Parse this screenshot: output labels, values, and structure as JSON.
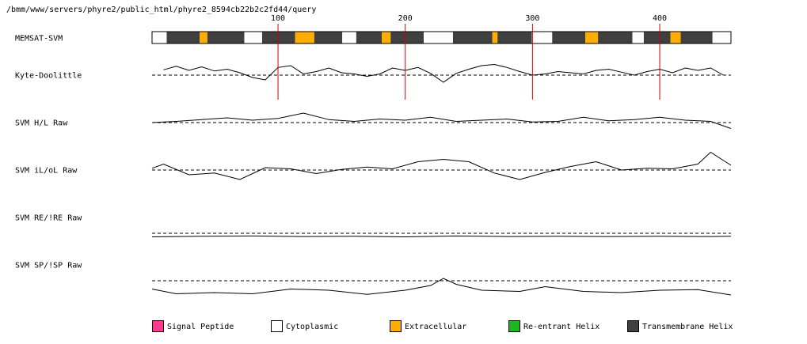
{
  "title": "/bmm/www/servers/phyre2/public_html/phyre2_8594cb22b2c2fd44/query",
  "colors": {
    "signal_peptide": "#ff3b8d",
    "cytoplasmic": "#ffffff",
    "extracellular": "#ffad00",
    "reentrant_helix": "#22b522",
    "transmembrane_helix": "#404040",
    "marker": "#d40000"
  },
  "chart_data": {
    "type": "line",
    "x_range": [
      1,
      456
    ],
    "x_ticks": [
      100,
      200,
      300,
      400
    ],
    "x_tick_labels": [
      "100",
      "200",
      "300",
      "400"
    ],
    "grid": false,
    "legend_placement": "bottom",
    "legend": [
      {
        "label": "Signal Peptide",
        "key": "signal_peptide"
      },
      {
        "label": "Cytoplasmic",
        "key": "cytoplasmic"
      },
      {
        "label": "Extracellular",
        "key": "extracellular"
      },
      {
        "label": "Re-entrant Helix",
        "key": "reentrant_helix"
      },
      {
        "label": "Transmembrane Helix",
        "key": "transmembrane_helix"
      }
    ],
    "memsat_track": {
      "label": "MEMSAT-SVM",
      "segments": [
        {
          "start": 1,
          "end": 12,
          "type": "cytoplasmic"
        },
        {
          "start": 13,
          "end": 38,
          "type": "transmembrane_helix"
        },
        {
          "start": 39,
          "end": 44,
          "type": "extracellular"
        },
        {
          "start": 45,
          "end": 73,
          "type": "transmembrane_helix"
        },
        {
          "start": 74,
          "end": 87,
          "type": "cytoplasmic"
        },
        {
          "start": 88,
          "end": 113,
          "type": "transmembrane_helix"
        },
        {
          "start": 114,
          "end": 128,
          "type": "extracellular"
        },
        {
          "start": 129,
          "end": 150,
          "type": "transmembrane_helix"
        },
        {
          "start": 151,
          "end": 161,
          "type": "cytoplasmic"
        },
        {
          "start": 162,
          "end": 181,
          "type": "transmembrane_helix"
        },
        {
          "start": 182,
          "end": 188,
          "type": "extracellular"
        },
        {
          "start": 189,
          "end": 214,
          "type": "transmembrane_helix"
        },
        {
          "start": 215,
          "end": 237,
          "type": "cytoplasmic"
        },
        {
          "start": 238,
          "end": 268,
          "type": "transmembrane_helix"
        },
        {
          "start": 269,
          "end": 272,
          "type": "extracellular"
        },
        {
          "start": 273,
          "end": 299,
          "type": "transmembrane_helix"
        },
        {
          "start": 300,
          "end": 315,
          "type": "cytoplasmic"
        },
        {
          "start": 316,
          "end": 341,
          "type": "transmembrane_helix"
        },
        {
          "start": 342,
          "end": 351,
          "type": "extracellular"
        },
        {
          "start": 352,
          "end": 378,
          "type": "transmembrane_helix"
        },
        {
          "start": 379,
          "end": 387,
          "type": "cytoplasmic"
        },
        {
          "start": 388,
          "end": 408,
          "type": "transmembrane_helix"
        },
        {
          "start": 409,
          "end": 416,
          "type": "extracellular"
        },
        {
          "start": 417,
          "end": 441,
          "type": "transmembrane_helix"
        },
        {
          "start": 442,
          "end": 456,
          "type": "cytoplasmic"
        }
      ]
    },
    "series": [
      {
        "name": "Kyte-Doolittle",
        "baseline": 0,
        "x": [
          10,
          20,
          30,
          40,
          50,
          60,
          70,
          80,
          90,
          100,
          110,
          120,
          130,
          140,
          150,
          160,
          170,
          180,
          190,
          200,
          210,
          220,
          230,
          240,
          250,
          260,
          270,
          280,
          290,
          300,
          310,
          320,
          330,
          340,
          350,
          360,
          370,
          380,
          390,
          400,
          410,
          420,
          430,
          440,
          450
        ],
        "y": [
          0.9,
          1.5,
          0.8,
          1.4,
          0.7,
          1.0,
          0.4,
          -0.4,
          -0.8,
          1.3,
          1.6,
          0.2,
          0.6,
          1.2,
          0.4,
          0.2,
          -0.2,
          0.2,
          1.2,
          0.8,
          1.3,
          0.3,
          -1.2,
          0.3,
          1.0,
          1.6,
          1.8,
          1.3,
          0.6,
          0.0,
          0.2,
          0.6,
          0.4,
          0.2,
          0.8,
          1.0,
          0.5,
          0.0,
          0.6,
          1.0,
          0.4,
          1.2,
          0.8,
          1.2,
          0.0
        ]
      },
      {
        "name": "SVM H/L Raw",
        "baseline": 0,
        "x": [
          1,
          20,
          40,
          60,
          80,
          100,
          120,
          140,
          160,
          180,
          200,
          220,
          240,
          260,
          280,
          300,
          320,
          340,
          360,
          380,
          400,
          420,
          440,
          456
        ],
        "y": [
          0.0,
          0.2,
          0.5,
          0.8,
          0.4,
          0.7,
          1.6,
          0.5,
          0.2,
          0.6,
          0.4,
          0.9,
          0.2,
          0.4,
          0.6,
          0.1,
          0.2,
          0.9,
          0.3,
          0.5,
          0.9,
          0.4,
          0.2,
          -1.0
        ]
      },
      {
        "name": "SVM iL/oL Raw",
        "baseline": 0,
        "x": [
          1,
          10,
          30,
          50,
          70,
          90,
          110,
          130,
          150,
          170,
          190,
          210,
          230,
          250,
          270,
          290,
          310,
          330,
          350,
          370,
          390,
          410,
          430,
          440,
          456
        ],
        "y": [
          0.3,
          1.0,
          -0.8,
          -0.5,
          -1.6,
          0.4,
          0.2,
          -0.6,
          0.1,
          0.5,
          0.2,
          1.4,
          1.8,
          1.4,
          -0.5,
          -1.6,
          -0.4,
          0.6,
          1.4,
          0.0,
          0.3,
          0.2,
          1.0,
          3.0,
          0.8
        ]
      },
      {
        "name": "SVM RE/!RE Raw",
        "baseline": 0,
        "x": [
          1,
          40,
          80,
          120,
          160,
          200,
          240,
          280,
          320,
          360,
          400,
          440,
          456
        ],
        "y": [
          -0.6,
          -0.5,
          -0.45,
          -0.55,
          -0.5,
          -0.6,
          -0.45,
          -0.55,
          -0.5,
          -0.55,
          -0.5,
          -0.55,
          -0.5
        ]
      },
      {
        "name": "SVM SP/!SP Raw",
        "baseline": 0,
        "x": [
          1,
          20,
          50,
          80,
          110,
          140,
          170,
          200,
          220,
          230,
          240,
          260,
          290,
          310,
          340,
          370,
          400,
          430,
          456
        ],
        "y": [
          -1.4,
          -2.2,
          -2.0,
          -2.2,
          -1.4,
          -1.6,
          -2.3,
          -1.6,
          -0.8,
          0.4,
          -0.6,
          -1.6,
          -1.8,
          -1.0,
          -1.8,
          -2.0,
          -1.6,
          -1.5,
          -2.4
        ]
      }
    ]
  }
}
